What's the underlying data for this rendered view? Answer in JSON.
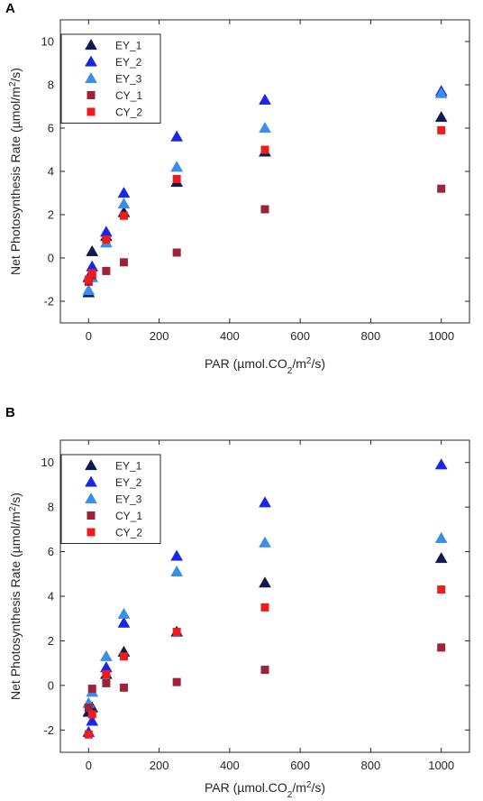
{
  "chart_data": [
    {
      "panel": "A",
      "type": "scatter",
      "xlabel": {
        "pre": "PAR (µmol.CO",
        "sub": "2",
        "mid": "/m",
        "sup": "2",
        "post": "/s)"
      },
      "ylabel": {
        "pre": "Net Photosynthesis Rate (µmol/m",
        "sup": "2",
        "post": "/s)"
      },
      "xlim": [
        -80,
        1080
      ],
      "ylim": [
        -3,
        11
      ],
      "xticks": [
        "0",
        "200",
        "400",
        "600",
        "800",
        "1000"
      ],
      "xtick_values": [
        0,
        200,
        400,
        600,
        800,
        1000
      ],
      "yticks": [
        "-2",
        "0",
        "2",
        "4",
        "6",
        "8",
        "10"
      ],
      "ytick_values": [
        -2,
        0,
        2,
        4,
        6,
        8,
        10
      ],
      "legend_position": "top-left",
      "series": [
        {
          "name": "EY_1",
          "marker": "triangle",
          "color": "#0f1a4f",
          "x": [
            0,
            10,
            50,
            100,
            250,
            500,
            1000
          ],
          "y": [
            -1.6,
            0.3,
            1.0,
            2.1,
            3.5,
            4.9,
            6.5
          ]
        },
        {
          "name": "EY_2",
          "marker": "triangle",
          "color": "#1a26e6",
          "x": [
            0,
            10,
            50,
            100,
            250,
            500,
            1000
          ],
          "y": [
            -0.9,
            -0.4,
            1.2,
            3.0,
            5.6,
            7.3,
            7.7
          ]
        },
        {
          "name": "EY_3",
          "marker": "triangle",
          "color": "#3a8ee6",
          "x": [
            0,
            10,
            50,
            100,
            250,
            500,
            1000
          ],
          "y": [
            -1.5,
            -0.9,
            0.7,
            2.5,
            4.2,
            6.0,
            7.6
          ]
        },
        {
          "name": "CY_1",
          "marker": "square",
          "color": "#9e2238",
          "x": [
            0,
            10,
            50,
            100,
            250,
            500,
            1000
          ],
          "y": [
            -1.1,
            -0.8,
            -0.6,
            -0.2,
            0.25,
            2.25,
            3.2
          ]
        },
        {
          "name": "CY_2",
          "marker": "square",
          "color": "#f01b1b",
          "x": [
            0,
            10,
            50,
            100,
            250,
            500,
            1000
          ],
          "y": [
            -1.0,
            -0.7,
            0.85,
            1.95,
            3.65,
            5.0,
            5.9
          ]
        }
      ]
    },
    {
      "panel": "B",
      "type": "scatter",
      "xlabel": {
        "pre": "PAR (µmol.CO",
        "sub": "2",
        "mid": "/m",
        "sup": "2",
        "post": "/s)"
      },
      "ylabel": {
        "pre": "Net Photosynthesis Rate (µmol/m",
        "sup": "2",
        "post": "/s)"
      },
      "xlim": [
        -80,
        1080
      ],
      "ylim": [
        -3,
        11
      ],
      "xticks": [
        "0",
        "200",
        "400",
        "600",
        "800",
        "1000"
      ],
      "xtick_values": [
        0,
        200,
        400,
        600,
        800,
        1000
      ],
      "yticks": [
        "-2",
        "0",
        "2",
        "4",
        "6",
        "8",
        "10"
      ],
      "ytick_values": [
        -2,
        0,
        2,
        4,
        6,
        8,
        10
      ],
      "legend_position": "top-left",
      "series": [
        {
          "name": "EY_1",
          "marker": "triangle",
          "color": "#0f1a4f",
          "x": [
            0,
            10,
            50,
            100,
            250,
            500,
            1000
          ],
          "y": [
            -1.2,
            -1.0,
            0.5,
            1.5,
            2.4,
            4.6,
            5.7
          ]
        },
        {
          "name": "EY_2",
          "marker": "triangle",
          "color": "#1a26e6",
          "x": [
            0,
            10,
            50,
            100,
            250,
            500,
            1000
          ],
          "y": [
            -2.1,
            -1.6,
            0.8,
            2.8,
            5.8,
            8.2,
            9.9
          ]
        },
        {
          "name": "EY_3",
          "marker": "triangle",
          "color": "#3a8ee6",
          "x": [
            0,
            10,
            50,
            100,
            250,
            500,
            1000
          ],
          "y": [
            -0.8,
            -0.3,
            1.3,
            3.2,
            5.1,
            6.4,
            6.6
          ]
        },
        {
          "name": "CY_1",
          "marker": "square",
          "color": "#9e2238",
          "x": [
            0,
            10,
            50,
            100,
            250,
            500,
            1000
          ],
          "y": [
            -1.0,
            -0.15,
            0.1,
            -0.1,
            0.15,
            0.7,
            1.7
          ]
        },
        {
          "name": "CY_2",
          "marker": "square",
          "color": "#f01b1b",
          "x": [
            0,
            10,
            50,
            100,
            250,
            500,
            1000
          ],
          "y": [
            -2.2,
            -1.3,
            0.5,
            1.3,
            2.4,
            3.5,
            4.3
          ]
        }
      ]
    }
  ]
}
